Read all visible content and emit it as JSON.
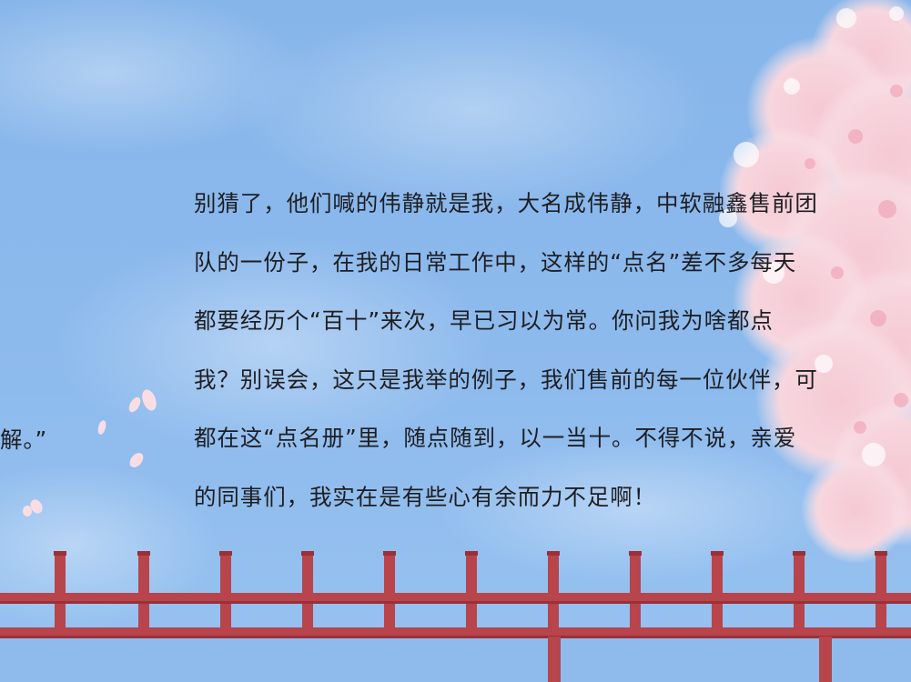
{
  "paragraph": {
    "lines": [
      "别猜了，他们喊的伟静就是我，大名成伟静，中软融鑫售前团",
      "队的一份子，在我的日常工作中，这样的“点名”差不多每天",
      "都要经历个“百十”来次，早已习以为常。你问我为啥都点",
      "我？别误会，这只是我举的例子，我们售前的每一位伙伴，可",
      "都在这“点名册”里，随点随到，以一当十。不得不说，亲爱",
      "的同事们，我实在是有些心有余而力不足啊！"
    ]
  },
  "left_fragment": "解。”",
  "colors": {
    "sky": "#8ab8ec",
    "sky_light": "#a9cdf4",
    "fence": "#b8444c",
    "fence_dark": "#9a3038",
    "blossom_pink": "#f4c3cf",
    "blossom_white": "#fbeef2",
    "text": "#1e1e22"
  }
}
